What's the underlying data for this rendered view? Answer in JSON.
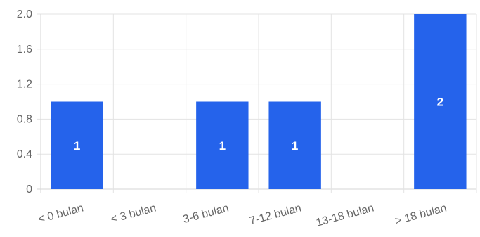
{
  "chart_data": {
    "type": "bar",
    "categories": [
      "< 0 bulan",
      "< 3 bulan",
      "3-6 bulan",
      "7-12 bulan",
      "13-18 bulan",
      "> 18 bulan"
    ],
    "values": [
      1,
      0,
      1,
      1,
      0,
      2
    ],
    "data_labels": [
      "1",
      "",
      "1",
      "1",
      "",
      "2"
    ],
    "y_ticks": [
      "0",
      "0.4",
      "0.8",
      "1.2",
      "1.6",
      "2.0"
    ],
    "ylim": [
      0,
      2
    ],
    "grid": true,
    "legend": "none",
    "bar_color": "#2563eb",
    "label_color": "#ffffff",
    "title": "",
    "xlabel": "",
    "ylabel": ""
  }
}
